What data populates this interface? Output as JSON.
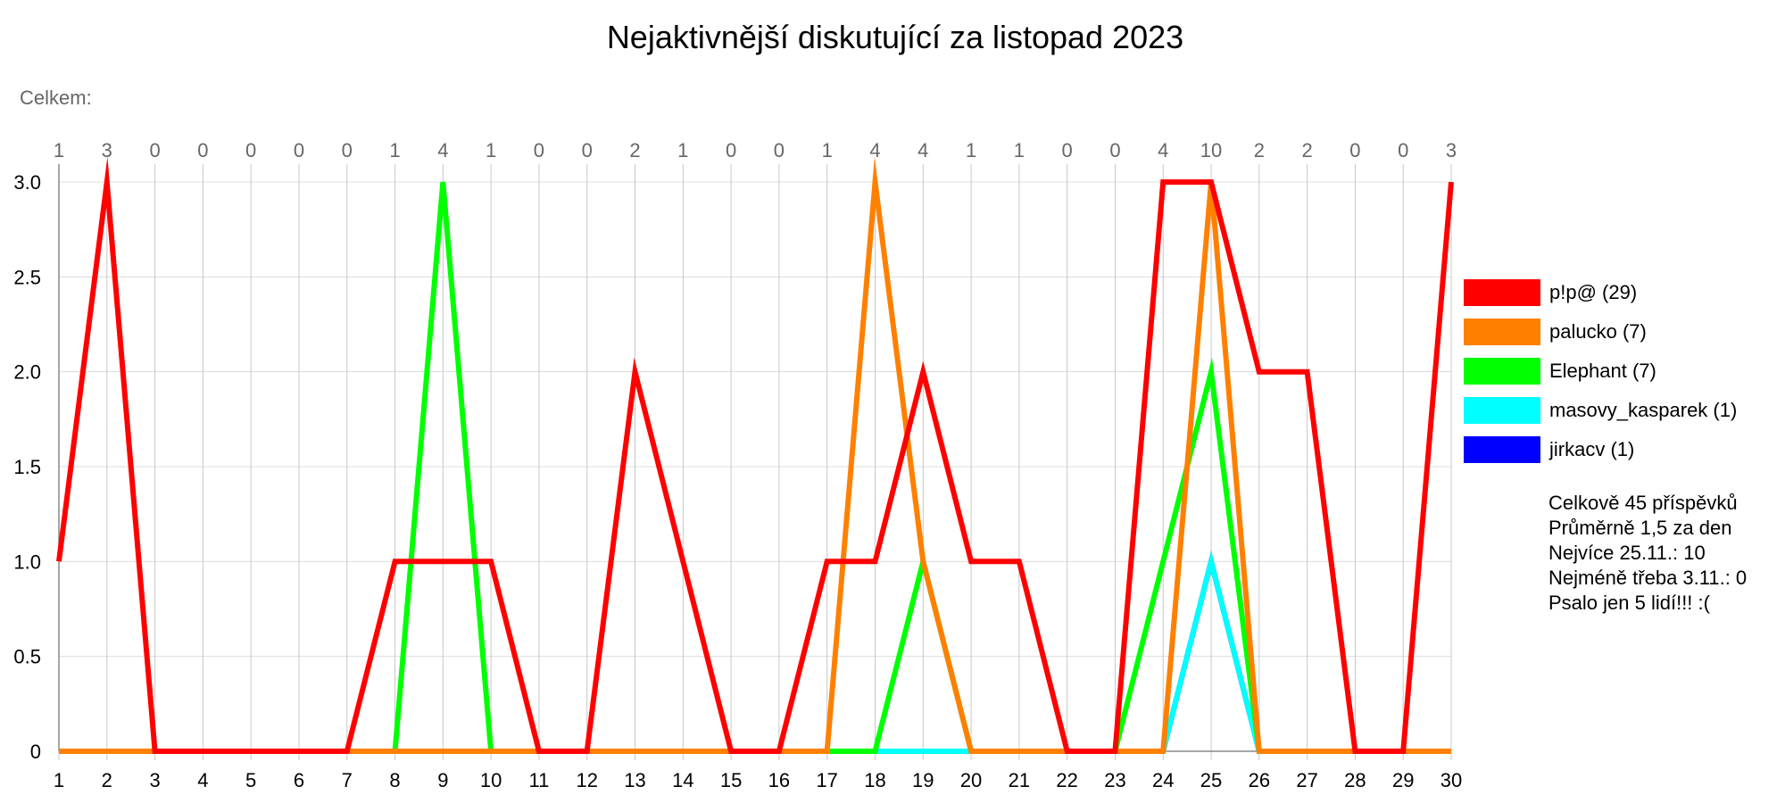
{
  "chart_data": {
    "type": "line",
    "title": "Nejaktivnější diskutující za listopad 2023",
    "subtitle": "Celkem:",
    "x": [
      1,
      2,
      3,
      4,
      5,
      6,
      7,
      8,
      9,
      10,
      11,
      12,
      13,
      14,
      15,
      16,
      17,
      18,
      19,
      20,
      21,
      22,
      23,
      24,
      25,
      26,
      27,
      28,
      29,
      30
    ],
    "daily_totals": [
      1,
      3,
      0,
      0,
      0,
      0,
      0,
      1,
      4,
      1,
      0,
      0,
      2,
      1,
      0,
      0,
      1,
      4,
      4,
      1,
      1,
      0,
      0,
      4,
      10,
      2,
      2,
      0,
      0,
      3
    ],
    "ylim": [
      0,
      3
    ],
    "yticks": [
      "0",
      "0.5",
      "1.0",
      "1.5",
      "2.0",
      "2.5",
      "3.0"
    ],
    "grid": true,
    "legend_position": "right",
    "series": [
      {
        "name": "p!p@ (29)",
        "color": "#ff0000",
        "values": [
          1,
          3,
          0,
          0,
          0,
          0,
          0,
          1,
          1,
          1,
          0,
          0,
          2,
          1,
          0,
          0,
          1,
          1,
          2,
          1,
          1,
          0,
          0,
          3,
          3,
          2,
          2,
          0,
          0,
          3
        ]
      },
      {
        "name": "palucko (7)",
        "color": "#ff8000",
        "values": [
          0,
          0,
          0,
          0,
          0,
          0,
          0,
          0,
          0,
          0,
          0,
          0,
          0,
          0,
          0,
          0,
          0,
          3,
          1,
          0,
          0,
          0,
          0,
          0,
          3,
          0,
          0,
          0,
          0,
          0
        ]
      },
      {
        "name": "Elephant (7)",
        "color": "#00ff00",
        "values": [
          0,
          0,
          0,
          0,
          0,
          0,
          0,
          0,
          3,
          0,
          0,
          0,
          0,
          0,
          0,
          0,
          0,
          0,
          1,
          0,
          0,
          0,
          0,
          1,
          2,
          0,
          0,
          0,
          0,
          0
        ]
      },
      {
        "name": "masovy_kasparek (1)",
        "color": "#00ffff",
        "values": [
          0,
          0,
          0,
          0,
          0,
          0,
          0,
          0,
          0,
          0,
          0,
          0,
          0,
          0,
          0,
          0,
          0,
          0,
          0,
          0,
          0,
          0,
          0,
          0,
          1,
          0,
          0,
          0,
          0,
          0
        ]
      },
      {
        "name": "jirkacv (1)",
        "color": "#0000ff",
        "values": [
          0,
          0,
          0,
          0,
          0,
          0,
          0,
          0,
          0,
          0,
          0,
          0,
          0,
          0,
          0,
          0,
          0,
          0,
          0,
          0,
          0,
          0,
          0,
          0,
          1,
          0,
          0,
          0,
          0,
          0
        ]
      }
    ]
  },
  "summary": {
    "line1": "Celkově 45 příspěvků",
    "line2": "Průměrně 1,5 za den",
    "line3": "Nejvíce 25.11.: 10",
    "line4": "Nejméně třeba 3.11.: 0",
    "line5": "Psalo jen 5 lidí!!! :("
  }
}
